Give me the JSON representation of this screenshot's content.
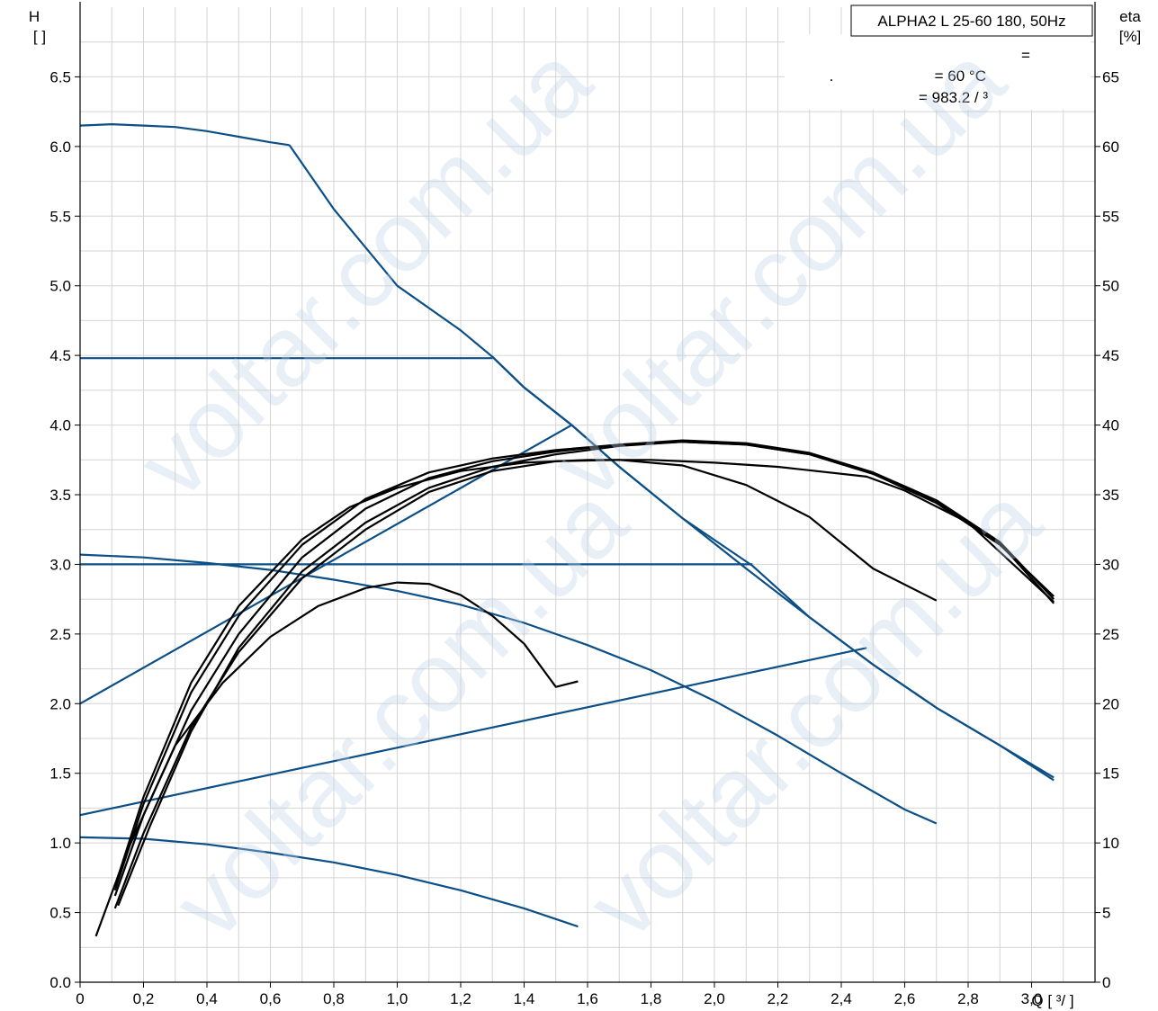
{
  "chart_data": {
    "type": "line",
    "title": "ALPHA2 L 25-60 180, 50Hz",
    "legend": {
      "line1": "=",
      "line2_prefix": ".",
      "line2": "= 60 °C",
      "line3": "= 983.2   /  ³"
    },
    "left_axis": {
      "label_top": "H",
      "label_unit": "[  ]",
      "range": [
        0,
        7.0
      ]
    },
    "right_axis": {
      "label_top": "eta",
      "label_unit": "[%]",
      "range": [
        0,
        70
      ]
    },
    "x_axis": {
      "label": "Q [  ³/  ]",
      "range": [
        0,
        3.2
      ]
    },
    "x_ticks": [
      "0",
      "0,2",
      "0,4",
      "0,6",
      "0,8",
      "1,0",
      "1,2",
      "1,4",
      "1,6",
      "1,8",
      "2,0",
      "2,2",
      "2,4",
      "2,6",
      "2,8",
      "3,0"
    ],
    "x_tick_values": [
      0,
      0.2,
      0.4,
      0.6,
      0.8,
      1.0,
      1.2,
      1.4,
      1.6,
      1.8,
      2.0,
      2.2,
      2.4,
      2.6,
      2.8,
      3.0
    ],
    "y_ticks": [
      "0.0",
      "0.5",
      "1.0",
      "1.5",
      "2.0",
      "2.5",
      "3.0",
      "3.5",
      "4.0",
      "4.5",
      "5.0",
      "5.5",
      "6.0",
      "6.5"
    ],
    "y_tick_values": [
      0,
      0.5,
      1.0,
      1.5,
      2.0,
      2.5,
      3.0,
      3.5,
      4.0,
      4.5,
      5.0,
      5.5,
      6.0,
      6.5
    ],
    "y2_ticks": [
      "0",
      "5",
      "10",
      "15",
      "20",
      "25",
      "30",
      "35",
      "40",
      "45",
      "50",
      "55",
      "60",
      "65"
    ],
    "y2_tick_values": [
      0,
      5,
      10,
      15,
      20,
      25,
      30,
      35,
      40,
      45,
      50,
      55,
      60,
      65
    ],
    "grid": true,
    "head_color": "#0b4f86",
    "eta_color": "#000000",
    "head_series": [
      {
        "x": [
          0,
          0.1,
          0.2,
          0.3,
          0.4,
          0.5,
          0.6,
          0.66
        ],
        "y": [
          6.15,
          6.16,
          6.15,
          6.14,
          6.11,
          6.07,
          6.03,
          6.01
        ]
      },
      {
        "x": [
          0.66,
          0.8,
          1.0,
          1.2,
          1.3,
          1.4,
          1.55,
          1.7,
          1.9,
          2.1,
          2.3,
          2.5,
          2.7,
          2.9,
          3.07
        ],
        "y": [
          6.01,
          5.55,
          5.0,
          4.68,
          4.49,
          4.27,
          4.0,
          3.7,
          3.33,
          2.97,
          2.62,
          2.28,
          1.97,
          1.7,
          1.47
        ]
      },
      {
        "x": [
          0,
          0.4,
          0.8,
          1.2,
          1.3
        ],
        "y": [
          4.48,
          4.48,
          4.48,
          4.48,
          4.48
        ]
      },
      {
        "x": [
          0,
          1.55
        ],
        "y": [
          2.0,
          4.0
        ]
      },
      {
        "x": [
          0,
          0.4,
          0.8,
          1.2,
          1.6,
          2.0,
          2.12
        ],
        "y": [
          3.0,
          3.0,
          3.0,
          3.0,
          3.0,
          3.0,
          3.0
        ]
      },
      {
        "x": [
          1.3,
          1.4,
          1.55,
          1.7,
          1.9,
          2.12,
          2.3,
          2.5,
          2.7,
          2.9,
          3.07
        ],
        "y": [
          4.49,
          4.27,
          4.0,
          3.7,
          3.33,
          2.99,
          2.62,
          2.28,
          1.97,
          1.7,
          1.45
        ]
      },
      {
        "x": [
          0,
          0.2,
          0.4,
          0.6,
          0.8,
          1.0,
          1.2,
          1.4,
          1.6,
          1.8,
          2.0,
          2.2,
          2.4,
          2.6,
          2.7
        ],
        "y": [
          3.07,
          3.05,
          3.01,
          2.96,
          2.89,
          2.81,
          2.71,
          2.58,
          2.42,
          2.24,
          2.02,
          1.77,
          1.5,
          1.24,
          1.14
        ]
      },
      {
        "x": [
          0,
          2.48
        ],
        "y": [
          1.2,
          2.4
        ]
      },
      {
        "x": [
          0,
          0.2,
          0.4,
          0.6,
          0.8,
          1.0,
          1.2,
          1.4,
          1.57
        ],
        "y": [
          1.04,
          1.03,
          0.99,
          0.93,
          0.86,
          0.77,
          0.66,
          0.53,
          0.4
        ]
      }
    ],
    "eta_series": [
      {
        "x": [
          0.05,
          0.15,
          0.3,
          0.45,
          0.6,
          0.75,
          0.9,
          1.0,
          1.1,
          1.2,
          1.3,
          1.4,
          1.5,
          1.57
        ],
        "y": [
          3.3,
          9.5,
          17.0,
          21.5,
          24.8,
          27.0,
          28.3,
          28.7,
          28.6,
          27.8,
          26.3,
          24.3,
          21.2,
          21.6
        ]
      },
      {
        "x": [
          0.11,
          0.2,
          0.35,
          0.5,
          0.7,
          0.9,
          1.1,
          1.3,
          1.5,
          1.7,
          1.9,
          2.1,
          2.3,
          2.5,
          2.7
        ],
        "y": [
          5.3,
          10.7,
          18.3,
          23.7,
          29.0,
          32.5,
          35.2,
          36.7,
          37.4,
          37.5,
          37.1,
          35.7,
          33.4,
          29.7,
          27.4
        ]
      },
      {
        "x": [
          0.12,
          0.22,
          0.35,
          0.5,
          0.7,
          0.9,
          1.1,
          1.3,
          1.5,
          1.7,
          1.9,
          2.1,
          2.3,
          2.5,
          2.7,
          2.9,
          3.07
        ],
        "y": [
          5.5,
          11.2,
          18.0,
          24.0,
          29.5,
          33.0,
          35.5,
          37.0,
          37.9,
          38.5,
          38.8,
          38.6,
          37.9,
          36.5,
          34.5,
          31.5,
          27.2
        ]
      },
      {
        "x": [
          0.11,
          0.2,
          0.35,
          0.5,
          0.7,
          0.9,
          1.1,
          1.3,
          1.5,
          1.7,
          1.9,
          2.1,
          2.3,
          2.5,
          2.7,
          2.9,
          3.07
        ],
        "y": [
          6.2,
          12.0,
          19.5,
          25.0,
          30.5,
          34.0,
          36.2,
          37.4,
          38.1,
          38.6,
          38.9,
          38.7,
          38.0,
          36.6,
          34.6,
          31.6,
          27.5
        ]
      },
      {
        "x": [
          0.11,
          0.2,
          0.35,
          0.5,
          0.7,
          0.9,
          1.1,
          1.3,
          1.5,
          1.7,
          1.9,
          2.1,
          2.3,
          2.5,
          2.7,
          2.9,
          3.07
        ],
        "y": [
          6.6,
          12.8,
          20.8,
          26.3,
          31.4,
          34.7,
          36.6,
          37.6,
          38.2,
          38.6,
          38.8,
          38.6,
          37.9,
          36.5,
          34.4,
          31.4,
          27.7
        ]
      },
      {
        "x": [
          0.11,
          0.2,
          0.35,
          0.5,
          0.7,
          0.85,
          1.0,
          1.2,
          1.4,
          1.6,
          1.8,
          2.0,
          2.2,
          2.48,
          2.6,
          2.8,
          3.07
        ],
        "y": [
          6.9,
          13.3,
          21.5,
          27.0,
          31.8,
          34.1,
          35.5,
          36.7,
          37.3,
          37.5,
          37.5,
          37.3,
          37.0,
          36.3,
          35.3,
          33.0,
          27.3
        ]
      }
    ]
  },
  "watermark": "voltar.com.ua"
}
